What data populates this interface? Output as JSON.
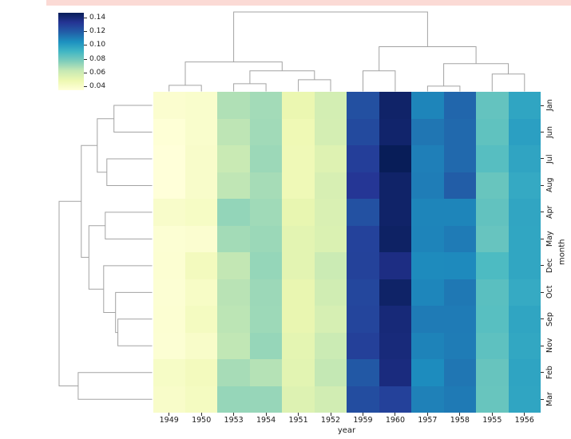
{
  "banner": {
    "color": "#fbdad5"
  },
  "chart_data": {
    "type": "heatmap",
    "style": "clustermap-with-dendrograms",
    "title": "",
    "xlabel": "year",
    "ylabel": "month",
    "columns": [
      "1949",
      "1950",
      "1953",
      "1954",
      "1951",
      "1952",
      "1959",
      "1960",
      "1957",
      "1958",
      "1955",
      "1956"
    ],
    "rows": [
      "Jan",
      "Jun",
      "Jul",
      "Aug",
      "Apr",
      "May",
      "Dec",
      "Oct",
      "Sep",
      "Nov",
      "Feb",
      "Mar"
    ],
    "values": [
      [
        0.0386,
        0.0396,
        0.0676,
        0.0703,
        0.05,
        0.0589,
        0.1241,
        0.1437,
        0.1086,
        0.1172,
        0.0834,
        0.0979
      ],
      [
        0.0361,
        0.0398,
        0.065,
        0.0706,
        0.0476,
        0.0583,
        0.1262,
        0.143,
        0.1128,
        0.1163,
        0.0842,
        0.1
      ],
      [
        0.0351,
        0.0403,
        0.0626,
        0.0716,
        0.0472,
        0.0546,
        0.13,
        0.1475,
        0.1103,
        0.1165,
        0.0863,
        0.098
      ],
      [
        0.0351,
        0.0404,
        0.0646,
        0.0696,
        0.0472,
        0.0574,
        0.1327,
        0.1438,
        0.1108,
        0.1199,
        0.0824,
        0.0961
      ],
      [
        0.0402,
        0.0421,
        0.0733,
        0.0708,
        0.0509,
        0.0565,
        0.1236,
        0.1438,
        0.1086,
        0.1086,
        0.0839,
        0.0977
      ],
      [
        0.0371,
        0.0383,
        0.0702,
        0.0717,
        0.0527,
        0.0561,
        0.1288,
        0.1447,
        0.1088,
        0.1113,
        0.0828,
        0.0975
      ],
      [
        0.0376,
        0.0446,
        0.064,
        0.0729,
        0.0528,
        0.0617,
        0.1289,
        0.1375,
        0.1069,
        0.1073,
        0.0885,
        0.0974
      ],
      [
        0.0372,
        0.0416,
        0.066,
        0.0716,
        0.0506,
        0.0597,
        0.1272,
        0.1441,
        0.1085,
        0.1122,
        0.0857,
        0.0957
      ],
      [
        0.0375,
        0.0435,
        0.0653,
        0.0714,
        0.0507,
        0.0576,
        0.1276,
        0.14,
        0.1113,
        0.1113,
        0.086,
        0.0978
      ],
      [
        0.0372,
        0.0408,
        0.0644,
        0.0727,
        0.0523,
        0.0616,
        0.1296,
        0.1396,
        0.1092,
        0.111,
        0.0848,
        0.097
      ],
      [
        0.0418,
        0.0447,
        0.0695,
        0.0667,
        0.0532,
        0.0638,
        0.1213,
        0.1387,
        0.1067,
        0.1128,
        0.0826,
        0.0982
      ],
      [
        0.0407,
        0.0435,
        0.0728,
        0.0725,
        0.0549,
        0.0595,
        0.1252,
        0.1292,
        0.1098,
        0.1117,
        0.0824,
        0.0978
      ]
    ],
    "vmin": 0.0351,
    "vmax": 0.1475,
    "colormap": {
      "name": "YlGnBu",
      "anchors": [
        [
          0.0,
          [
            255,
            255,
            217
          ]
        ],
        [
          0.125,
          [
            237,
            248,
            177
          ]
        ],
        [
          0.25,
          [
            199,
            233,
            180
          ]
        ],
        [
          0.375,
          [
            127,
            205,
            187
          ]
        ],
        [
          0.5,
          [
            65,
            182,
            196
          ]
        ],
        [
          0.625,
          [
            29,
            145,
            192
          ]
        ],
        [
          0.75,
          [
            34,
            94,
            168
          ]
        ],
        [
          0.875,
          [
            37,
            52,
            148
          ]
        ],
        [
          1.0,
          [
            8,
            29,
            88
          ]
        ]
      ]
    },
    "colorbar": {
      "tick_labels": [
        "0.14",
        "0.12",
        "0.10",
        "0.08",
        "0.06",
        "0.04"
      ],
      "tick_values": [
        0.14,
        0.12,
        0.1,
        0.08,
        0.06,
        0.04
      ]
    },
    "grid": false,
    "legend_position": "upper-left-colorbar",
    "dendrogram_color": "#a3a3a3",
    "dendrograms": {
      "top": {
        "merges": [
          [
            "L0",
            "L1",
            0.076
          ],
          [
            "L2",
            "L3",
            0.096
          ],
          [
            "L4",
            "L5",
            0.147
          ],
          [
            "M1",
            "M2",
            0.259
          ],
          [
            "M0",
            "M3",
            0.371
          ],
          [
            "L6",
            "L7",
            0.259
          ],
          [
            "L8",
            "L9",
            0.066
          ],
          [
            "L10",
            "L11",
            0.218
          ],
          [
            "M6",
            "M7",
            0.35
          ],
          [
            "M5",
            "M8",
            0.563
          ],
          [
            "M4",
            "M9",
            1.0
          ]
        ]
      },
      "left": {
        "merges": [
          [
            "L0",
            "L1",
            0.41
          ],
          [
            "L2",
            "L3",
            0.487
          ],
          [
            "M0",
            "M1",
            0.59
          ],
          [
            "L4",
            "L5",
            0.504
          ],
          [
            "L8",
            "L9",
            0.368
          ],
          [
            "L7",
            "M4",
            0.393
          ],
          [
            "L6",
            "M5",
            0.521
          ],
          [
            "M3",
            "M6",
            0.68
          ],
          [
            "M2",
            "M7",
            0.761
          ],
          [
            "L10",
            "L11",
            0.795
          ],
          [
            "M8",
            "M9",
            1.0
          ]
        ]
      }
    }
  }
}
